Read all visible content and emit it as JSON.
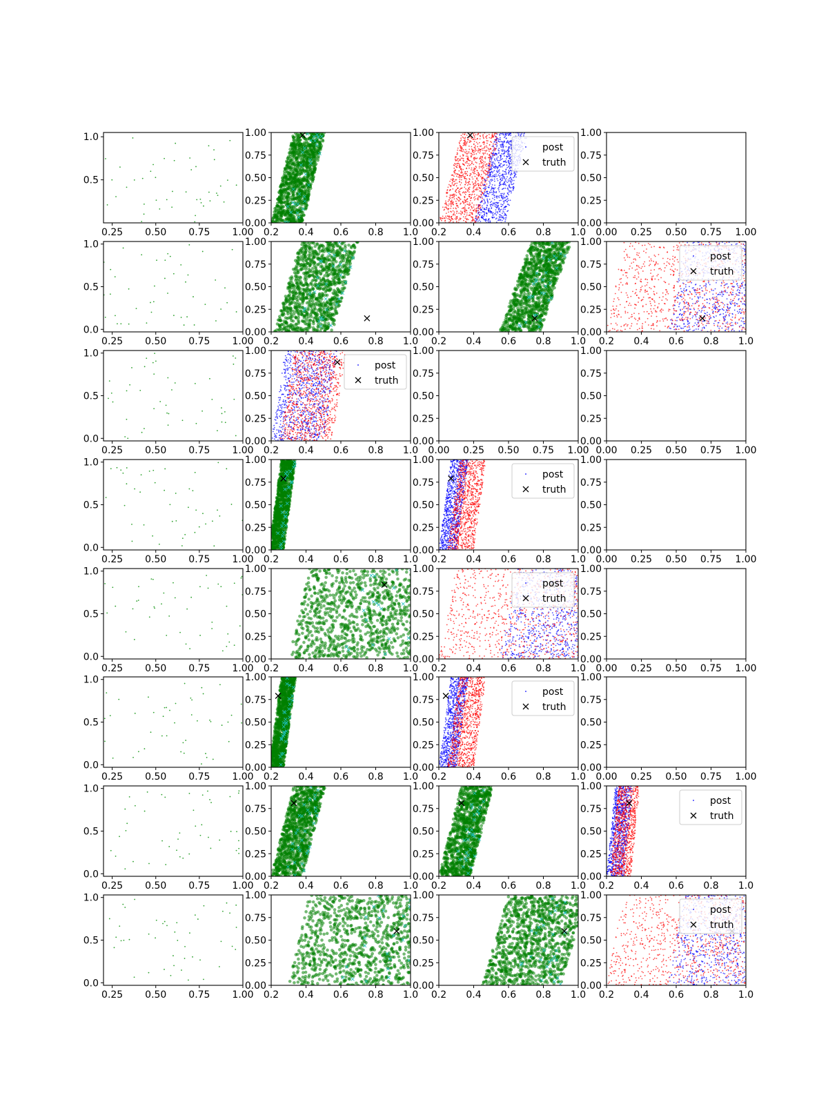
{
  "figure": {
    "rows": 8,
    "cols": 4
  },
  "legend_labels": {
    "post": "post",
    "truth": "truth"
  },
  "colors": {
    "sample": "#2ca02c",
    "post_fill": "#008000",
    "post_blue": "#0000ff",
    "post_red": "#ff0000",
    "truth": "#000000",
    "prior_cross": "#20c0c0"
  },
  "chart_data": [
    {
      "row": 0,
      "panels": [
        {
          "col": 0,
          "type": "scatter",
          "kind": "samples",
          "xlim": [
            0.2,
            1.0
          ],
          "ylim": [
            0.0,
            1.05
          ],
          "xticks": [
            "0.25",
            "0.50",
            "0.75",
            "1.00"
          ],
          "yticks": [
            "0.5",
            "1.0"
          ]
        },
        {
          "col": 1,
          "type": "scatter",
          "kind": "posterior",
          "xlim": [
            0.2,
            1.0
          ],
          "ylim": [
            0.0,
            1.0
          ],
          "xticks": [
            "0.2",
            "0.4",
            "0.6",
            "0.8",
            "1.0"
          ],
          "yticks": [
            "0.00",
            "0.25",
            "0.50",
            "0.75",
            "1.00"
          ],
          "truth": [
            0.38,
            0.97
          ]
        },
        {
          "col": 2,
          "type": "scatter",
          "kind": "posterior-redblue",
          "xlim": [
            0.2,
            1.0
          ],
          "ylim": [
            0.0,
            1.0
          ],
          "xticks": [
            "0.2",
            "0.4",
            "0.6",
            "0.8",
            "1.0"
          ],
          "yticks": [
            "0.00",
            "0.25",
            "0.50",
            "0.75",
            "1.00"
          ],
          "truth": [
            0.38,
            0.97
          ],
          "legend": "top-right"
        },
        {
          "col": 3,
          "type": "empty",
          "xlim": [
            0.0,
            1.0
          ],
          "ylim": [
            0.0,
            1.0
          ],
          "xticks": [
            "0.00",
            "0.25",
            "0.50",
            "0.75",
            "1.00"
          ],
          "yticks": [
            "0.00",
            "0.25",
            "0.50",
            "0.75",
            "1.00"
          ]
        }
      ]
    },
    {
      "row": 1,
      "panels": [
        {
          "col": 0,
          "type": "scatter",
          "kind": "samples",
          "xlim": [
            0.2,
            1.0
          ],
          "ylim": [
            -0.03,
            1.03
          ],
          "xticks": [
            "0.25",
            "0.50",
            "0.75",
            "1.00"
          ],
          "yticks": [
            "0.0",
            "0.5",
            "1.0"
          ]
        },
        {
          "col": 1,
          "type": "scatter",
          "kind": "posterior",
          "xlim": [
            0.2,
            1.0
          ],
          "ylim": [
            0.0,
            1.0
          ],
          "xticks": [
            "0.2",
            "0.4",
            "0.6",
            "0.8",
            "1.0"
          ],
          "yticks": [
            "0.00",
            "0.25",
            "0.50",
            "0.75",
            "1.00"
          ],
          "truth": [
            0.75,
            0.15
          ]
        },
        {
          "col": 2,
          "type": "scatter",
          "kind": "posterior",
          "xlim": [
            0.2,
            1.0
          ],
          "ylim": [
            0.0,
            1.0
          ],
          "xticks": [
            "0.2",
            "0.4",
            "0.6",
            "0.8",
            "1.0"
          ],
          "yticks": [
            "0.00",
            "0.25",
            "0.50",
            "0.75",
            "1.00"
          ],
          "truth": [
            0.75,
            0.15
          ]
        },
        {
          "col": 3,
          "type": "scatter",
          "kind": "posterior-redblue",
          "xlim": [
            0.2,
            1.0
          ],
          "ylim": [
            0.0,
            1.0
          ],
          "xticks": [
            "0.2",
            "0.4",
            "0.6",
            "0.8",
            "1.0"
          ],
          "yticks": [
            "0.00",
            "0.25",
            "0.50",
            "0.75",
            "1.00"
          ],
          "truth": [
            0.75,
            0.15
          ],
          "legend": "top-right"
        }
      ]
    },
    {
      "row": 2,
      "panels": [
        {
          "col": 0,
          "type": "scatter",
          "kind": "samples",
          "xlim": [
            0.2,
            1.0
          ],
          "ylim": [
            -0.03,
            1.03
          ],
          "xticks": [
            "0.25",
            "0.50",
            "0.75",
            "1.00"
          ],
          "yticks": [
            "0.0",
            "0.5",
            "1.0"
          ]
        },
        {
          "col": 1,
          "type": "scatter",
          "kind": "posterior-redblue",
          "xlim": [
            0.2,
            1.0
          ],
          "ylim": [
            0.0,
            1.0
          ],
          "xticks": [
            "0.2",
            "0.4",
            "0.6",
            "0.8",
            "1.0"
          ],
          "yticks": [
            "0.00",
            "0.25",
            "0.50",
            "0.75",
            "1.00"
          ],
          "truth": [
            0.58,
            0.87
          ],
          "legend": "top-right"
        },
        {
          "col": 2,
          "type": "empty",
          "xlim": [
            0.0,
            1.0
          ],
          "ylim": [
            0.0,
            1.0
          ],
          "xticks": [
            "0.00",
            "0.25",
            "0.50",
            "0.75",
            "1.00"
          ],
          "yticks": [
            "0.00",
            "0.25",
            "0.50",
            "0.75",
            "1.00"
          ]
        },
        {
          "col": 3,
          "type": "empty",
          "xlim": [
            0.0,
            1.0
          ],
          "ylim": [
            0.0,
            1.0
          ],
          "xticks": [
            "0.00",
            "0.25",
            "0.50",
            "0.75",
            "1.00"
          ],
          "yticks": [
            "0.00",
            "0.25",
            "0.50",
            "0.75",
            "1.00"
          ]
        }
      ]
    },
    {
      "row": 3,
      "panels": [
        {
          "col": 0,
          "type": "scatter",
          "kind": "samples",
          "xlim": [
            0.2,
            1.0
          ],
          "ylim": [
            -0.03,
            1.03
          ],
          "xticks": [
            "0.25",
            "0.50",
            "0.75",
            "1.00"
          ],
          "yticks": [
            "0.0",
            "0.5",
            "1.0"
          ]
        },
        {
          "col": 1,
          "type": "scatter",
          "kind": "posterior",
          "xlim": [
            0.2,
            1.0
          ],
          "ylim": [
            0.0,
            1.0
          ],
          "xticks": [
            "0.2",
            "0.4",
            "0.6",
            "0.8",
            "1.0"
          ],
          "yticks": [
            "0.00",
            "0.25",
            "0.50",
            "0.75",
            "1.00"
          ],
          "truth": [
            0.27,
            0.79
          ]
        },
        {
          "col": 2,
          "type": "scatter",
          "kind": "posterior-redblue",
          "xlim": [
            0.2,
            1.0
          ],
          "ylim": [
            0.0,
            1.0
          ],
          "xticks": [
            "0.2",
            "0.4",
            "0.6",
            "0.8",
            "1.0"
          ],
          "yticks": [
            "0.00",
            "0.25",
            "0.50",
            "0.75",
            "1.00"
          ],
          "truth": [
            0.27,
            0.79
          ],
          "legend": "top-right"
        },
        {
          "col": 3,
          "type": "empty",
          "xlim": [
            0.0,
            1.0
          ],
          "ylim": [
            0.0,
            1.0
          ],
          "xticks": [
            "0.00",
            "0.25",
            "0.50",
            "0.75",
            "1.00"
          ],
          "yticks": [
            "0.00",
            "0.25",
            "0.50",
            "0.75",
            "1.00"
          ]
        }
      ]
    },
    {
      "row": 4,
      "panels": [
        {
          "col": 0,
          "type": "scatter",
          "kind": "samples",
          "xlim": [
            0.2,
            1.0
          ],
          "ylim": [
            -0.03,
            1.03
          ],
          "xticks": [
            "0.25",
            "0.50",
            "0.75",
            "1.00"
          ],
          "yticks": [
            "0.0",
            "0.5",
            "1.0"
          ]
        },
        {
          "col": 1,
          "type": "scatter",
          "kind": "posterior",
          "xlim": [
            0.2,
            1.0
          ],
          "ylim": [
            0.0,
            1.0
          ],
          "xticks": [
            "0.2",
            "0.4",
            "0.6",
            "0.8",
            "1.0"
          ],
          "yticks": [
            "0.00",
            "0.25",
            "0.50",
            "0.75",
            "1.00"
          ],
          "truth": [
            0.85,
            0.82
          ]
        },
        {
          "col": 2,
          "type": "scatter",
          "kind": "posterior-redblue",
          "xlim": [
            0.2,
            1.0
          ],
          "ylim": [
            0.0,
            1.0
          ],
          "xticks": [
            "0.2",
            "0.4",
            "0.6",
            "0.8",
            "1.0"
          ],
          "yticks": [
            "0.00",
            "0.25",
            "0.50",
            "0.75",
            "1.00"
          ],
          "truth": [
            0.85,
            0.82
          ],
          "legend": "top-right"
        },
        {
          "col": 3,
          "type": "empty",
          "xlim": [
            0.0,
            1.0
          ],
          "ylim": [
            0.0,
            1.0
          ],
          "xticks": [
            "0.00",
            "0.25",
            "0.50",
            "0.75",
            "1.00"
          ],
          "yticks": [
            "0.00",
            "0.25",
            "0.50",
            "0.75",
            "1.00"
          ]
        }
      ]
    },
    {
      "row": 5,
      "panels": [
        {
          "col": 0,
          "type": "scatter",
          "kind": "samples",
          "xlim": [
            0.2,
            1.0
          ],
          "ylim": [
            -0.03,
            1.03
          ],
          "xticks": [
            "0.25",
            "0.50",
            "0.75",
            "1.00"
          ],
          "yticks": [
            "0.0",
            "0.5",
            "1.0"
          ]
        },
        {
          "col": 1,
          "type": "scatter",
          "kind": "posterior",
          "xlim": [
            0.2,
            1.0
          ],
          "ylim": [
            0.0,
            1.0
          ],
          "xticks": [
            "0.2",
            "0.4",
            "0.6",
            "0.8",
            "1.0"
          ],
          "yticks": [
            "0.00",
            "0.25",
            "0.50",
            "0.75",
            "1.00"
          ],
          "truth": [
            0.24,
            0.79
          ]
        },
        {
          "col": 2,
          "type": "scatter",
          "kind": "posterior-redblue",
          "xlim": [
            0.2,
            1.0
          ],
          "ylim": [
            0.0,
            1.0
          ],
          "xticks": [
            "0.2",
            "0.4",
            "0.6",
            "0.8",
            "1.0"
          ],
          "yticks": [
            "0.00",
            "0.25",
            "0.50",
            "0.75",
            "1.00"
          ],
          "truth": [
            0.24,
            0.79
          ],
          "legend": "top-right"
        },
        {
          "col": 3,
          "type": "empty",
          "xlim": [
            0.0,
            1.0
          ],
          "ylim": [
            0.0,
            1.0
          ],
          "xticks": [
            "0.00",
            "0.25",
            "0.50",
            "0.75",
            "1.00"
          ],
          "yticks": [
            "0.00",
            "0.25",
            "0.50",
            "0.75",
            "1.00"
          ]
        }
      ]
    },
    {
      "row": 6,
      "panels": [
        {
          "col": 0,
          "type": "scatter",
          "kind": "samples",
          "xlim": [
            0.2,
            1.0
          ],
          "ylim": [
            -0.03,
            1.03
          ],
          "xticks": [
            "0.25",
            "0.50",
            "0.75",
            "1.00"
          ],
          "yticks": [
            "0.0",
            "0.5",
            "1.0"
          ]
        },
        {
          "col": 1,
          "type": "scatter",
          "kind": "posterior",
          "xlim": [
            0.2,
            1.0
          ],
          "ylim": [
            0.0,
            1.0
          ],
          "xticks": [
            "0.2",
            "0.4",
            "0.6",
            "0.8",
            "1.0"
          ],
          "yticks": [
            "0.00",
            "0.25",
            "0.50",
            "0.75",
            "1.00"
          ],
          "truth": [
            0.33,
            0.81
          ]
        },
        {
          "col": 2,
          "type": "scatter",
          "kind": "posterior",
          "xlim": [
            0.2,
            1.0
          ],
          "ylim": [
            0.0,
            1.0
          ],
          "xticks": [
            "0.2",
            "0.4",
            "0.6",
            "0.8",
            "1.0"
          ],
          "yticks": [
            "0.00",
            "0.25",
            "0.50",
            "0.75",
            "1.00"
          ],
          "truth": [
            0.33,
            0.81
          ]
        },
        {
          "col": 3,
          "type": "scatter",
          "kind": "posterior-redblue",
          "xlim": [
            0.2,
            1.0
          ],
          "ylim": [
            0.0,
            1.0
          ],
          "xticks": [
            "0.2",
            "0.4",
            "0.6",
            "0.8",
            "1.0"
          ],
          "yticks": [
            "0.00",
            "0.25",
            "0.50",
            "0.75",
            "1.00"
          ],
          "truth": [
            0.33,
            0.81
          ],
          "legend": "top-right"
        }
      ]
    },
    {
      "row": 7,
      "panels": [
        {
          "col": 0,
          "type": "scatter",
          "kind": "samples",
          "xlim": [
            0.2,
            1.0
          ],
          "ylim": [
            -0.03,
            1.03
          ],
          "xticks": [
            "0.25",
            "0.50",
            "0.75",
            "1.00"
          ],
          "yticks": [
            "0.0",
            "0.5",
            "1.0"
          ]
        },
        {
          "col": 1,
          "type": "scatter",
          "kind": "posterior",
          "xlim": [
            0.2,
            1.0
          ],
          "ylim": [
            0.0,
            1.0
          ],
          "xticks": [
            "0.2",
            "0.4",
            "0.6",
            "0.8",
            "1.0"
          ],
          "yticks": [
            "0.00",
            "0.25",
            "0.50",
            "0.75",
            "1.00"
          ],
          "truth": [
            0.92,
            0.6
          ]
        },
        {
          "col": 2,
          "type": "scatter",
          "kind": "posterior",
          "xlim": [
            0.2,
            1.0
          ],
          "ylim": [
            0.0,
            1.0
          ],
          "xticks": [
            "0.2",
            "0.4",
            "0.6",
            "0.8",
            "1.0"
          ],
          "yticks": [
            "0.00",
            "0.25",
            "0.50",
            "0.75",
            "1.00"
          ],
          "truth": [
            0.92,
            0.6
          ]
        },
        {
          "col": 3,
          "type": "scatter",
          "kind": "posterior-redblue",
          "xlim": [
            0.2,
            1.0
          ],
          "ylim": [
            0.0,
            1.0
          ],
          "xticks": [
            "0.2",
            "0.4",
            "0.6",
            "0.8",
            "1.0"
          ],
          "yticks": [
            "0.00",
            "0.25",
            "0.50",
            "0.75",
            "1.00"
          ],
          "truth": [
            0.92,
            0.6
          ],
          "legend": "top-right"
        }
      ]
    }
  ]
}
